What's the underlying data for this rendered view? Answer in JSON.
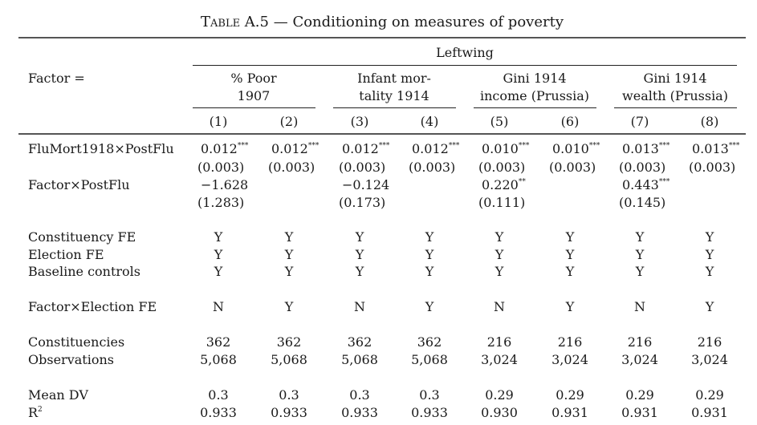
{
  "title": {
    "caption_prefix": "Table A.5",
    "separator": "—",
    "text": "Conditioning on measures of poverty"
  },
  "header": {
    "dependent_variable": "Leftwing",
    "factor_label": "Factor =",
    "groups": [
      {
        "line1": "% Poor",
        "line2": "1907"
      },
      {
        "line1": "Infant mor-",
        "line2": "tality 1914"
      },
      {
        "line1": "Gini 1914",
        "line2": "income (Prussia)"
      },
      {
        "line1": "Gini 1914",
        "line2": "wealth (Prussia)"
      }
    ],
    "columns": [
      "(1)",
      "(2)",
      "(3)",
      "(4)",
      "(5)",
      "(6)",
      "(7)",
      "(8)"
    ]
  },
  "coef_rows": [
    {
      "label": "FluMort1918×PostFlu",
      "coefs": [
        {
          "value": "0.012",
          "stars": "***"
        },
        {
          "value": "0.012",
          "stars": "***"
        },
        {
          "value": "0.012",
          "stars": "***"
        },
        {
          "value": "0.012",
          "stars": "***"
        },
        {
          "value": "0.010",
          "stars": "***"
        },
        {
          "value": "0.010",
          "stars": "***"
        },
        {
          "value": "0.013",
          "stars": "***"
        },
        {
          "value": "0.013",
          "stars": "***"
        }
      ],
      "se": [
        "(0.003)",
        "(0.003)",
        "(0.003)",
        "(0.003)",
        "(0.003)",
        "(0.003)",
        "(0.003)",
        "(0.003)"
      ]
    },
    {
      "label": "Factor×PostFlu",
      "coefs": [
        {
          "value": "−1.628",
          "stars": ""
        },
        null,
        {
          "value": "−0.124",
          "stars": ""
        },
        null,
        {
          "value": "0.220",
          "stars": "**"
        },
        null,
        {
          "value": "0.443",
          "stars": "***"
        },
        null
      ],
      "se": [
        "(1.283)",
        "",
        "(0.173)",
        "",
        "(0.111)",
        "",
        "(0.145)",
        ""
      ]
    }
  ],
  "fe_rows": [
    {
      "label": "Constituency FE",
      "values": [
        "Y",
        "Y",
        "Y",
        "Y",
        "Y",
        "Y",
        "Y",
        "Y"
      ]
    },
    {
      "label": "Election FE",
      "values": [
        "Y",
        "Y",
        "Y",
        "Y",
        "Y",
        "Y",
        "Y",
        "Y"
      ]
    },
    {
      "label": "Baseline controls",
      "values": [
        "Y",
        "Y",
        "Y",
        "Y",
        "Y",
        "Y",
        "Y",
        "Y"
      ]
    }
  ],
  "factor_fe_row": {
    "label": "Factor×Election FE",
    "values": [
      "N",
      "Y",
      "N",
      "Y",
      "N",
      "Y",
      "N",
      "Y"
    ]
  },
  "count_rows": [
    {
      "label": "Constituencies",
      "values": [
        "362",
        "362",
        "362",
        "362",
        "216",
        "216",
        "216",
        "216"
      ]
    },
    {
      "label": "Observations",
      "values": [
        "5,068",
        "5,068",
        "5,068",
        "5,068",
        "3,024",
        "3,024",
        "3,024",
        "3,024"
      ]
    }
  ],
  "stat_rows": [
    {
      "label": "Mean DV",
      "values": [
        "0.3",
        "0.3",
        "0.3",
        "0.3",
        "0.29",
        "0.29",
        "0.29",
        "0.29"
      ]
    },
    {
      "label": "R",
      "label_sup": "2",
      "values": [
        "0.933",
        "0.933",
        "0.933",
        "0.933",
        "0.930",
        "0.931",
        "0.931",
        "0.931"
      ]
    }
  ]
}
